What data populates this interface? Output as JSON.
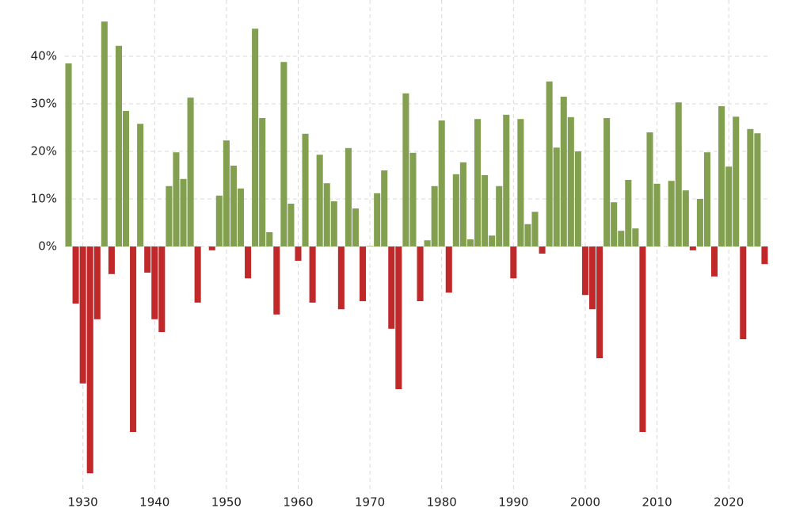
{
  "chart_data": {
    "type": "bar",
    "x": [
      1928,
      1929,
      1930,
      1931,
      1932,
      1933,
      1934,
      1935,
      1936,
      1937,
      1938,
      1939,
      1940,
      1941,
      1942,
      1943,
      1944,
      1945,
      1946,
      1947,
      1948,
      1949,
      1950,
      1951,
      1952,
      1953,
      1954,
      1955,
      1956,
      1957,
      1958,
      1959,
      1960,
      1961,
      1962,
      1963,
      1964,
      1965,
      1966,
      1967,
      1968,
      1969,
      1970,
      1971,
      1972,
      1973,
      1974,
      1975,
      1976,
      1977,
      1978,
      1979,
      1980,
      1981,
      1982,
      1983,
      1984,
      1985,
      1986,
      1987,
      1988,
      1989,
      1990,
      1991,
      1992,
      1993,
      1994,
      1995,
      1996,
      1997,
      1998,
      1999,
      2000,
      2001,
      2002,
      2003,
      2004,
      2005,
      2006,
      2007,
      2008,
      2009,
      2010,
      2011,
      2012,
      2013,
      2014,
      2015,
      2016,
      2017,
      2018,
      2019,
      2020,
      2021,
      2022,
      2023,
      2024,
      2025
    ],
    "values": [
      38.5,
      -12,
      -28.8,
      -47.7,
      -15.3,
      47.3,
      -5.8,
      42.2,
      28.5,
      -39,
      25.8,
      -5.5,
      -15.3,
      -18,
      12.7,
      19.8,
      14.2,
      31.3,
      -11.8,
      0,
      -0.8,
      10.7,
      22.3,
      17,
      12.2,
      -6.7,
      45.8,
      27,
      3,
      -14.3,
      38.8,
      9,
      -3,
      23.7,
      -11.8,
      19.3,
      13.3,
      9.5,
      -13.2,
      20.7,
      8,
      -11.5,
      0.1,
      11.2,
      16,
      -17.3,
      -30,
      32.2,
      19.7,
      -11.5,
      1.3,
      12.7,
      26.5,
      -9.7,
      15.2,
      17.7,
      1.5,
      26.8,
      15,
      2.3,
      12.7,
      27.7,
      -6.7,
      26.8,
      4.7,
      7.3,
      -1.5,
      34.7,
      20.8,
      31.5,
      27.2,
      20,
      -10.2,
      -13.2,
      -23.5,
      27,
      9.3,
      3.3,
      14,
      3.8,
      -39,
      24,
      13.2,
      0,
      13.8,
      30.3,
      11.8,
      -0.8,
      10,
      19.8,
      -6.3,
      29.5,
      16.8,
      27.3,
      -19.5,
      24.7,
      23.8,
      -3.7
    ],
    "positive_color": "#82a04f",
    "negative_color": "#c0282a",
    "xlim": [
      1927.5,
      2025.5
    ],
    "xticks": [
      1930,
      1940,
      1950,
      1960,
      1970,
      1980,
      1990,
      2000,
      2010,
      2020
    ],
    "ylim": [
      -50,
      50
    ],
    "yticks": [
      {
        "value": 0,
        "label": "0%"
      },
      {
        "value": 10,
        "label": "10%"
      },
      {
        "value": 20,
        "label": "20%"
      },
      {
        "value": 30,
        "label": "30%"
      },
      {
        "value": 40,
        "label": "40%"
      }
    ],
    "grid": true
  }
}
